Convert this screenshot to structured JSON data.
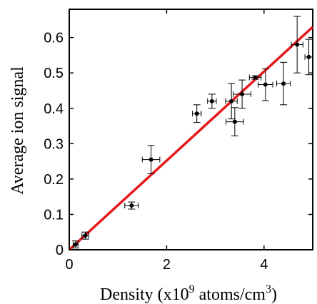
{
  "chart_data": {
    "type": "scatter",
    "xlabel": "Density (x10",
    "xlabel_superscript": "9",
    "xlabel_rest": " atoms/cm",
    "xlabel_rest_superscript": "3",
    "xlabel_close": ")",
    "ylabel": "Average ion signal",
    "xlim": [
      0,
      5
    ],
    "ylim": [
      0,
      0.68
    ],
    "grid": false,
    "x_ticks": [
      0,
      2,
      4
    ],
    "y_ticks": [
      0,
      0.1,
      0.2,
      0.3,
      0.4,
      0.5,
      0.6
    ],
    "x_tick_labels": [
      "0",
      "2",
      "4"
    ],
    "y_tick_labels": [
      "0",
      "0.1",
      "0.2",
      "0.3",
      "0.4",
      "0.5",
      "0.6"
    ],
    "series": [
      {
        "kind": "points",
        "color": "#000000",
        "points": [
          {
            "x": 0.13,
            "y": 0.015,
            "xerr": 0.05,
            "yerr": 0.01
          },
          {
            "x": 0.33,
            "y": 0.04,
            "xerr": 0.07,
            "yerr": 0.01
          },
          {
            "x": 1.28,
            "y": 0.125,
            "xerr": 0.14,
            "yerr": 0.01
          },
          {
            "x": 1.68,
            "y": 0.255,
            "xerr": 0.18,
            "yerr": 0.04
          },
          {
            "x": 2.62,
            "y": 0.385,
            "xerr": 0.09,
            "yerr": 0.025
          },
          {
            "x": 2.93,
            "y": 0.42,
            "xerr": 0.09,
            "yerr": 0.02
          },
          {
            "x": 3.33,
            "y": 0.42,
            "xerr": 0.12,
            "yerr": 0.05
          },
          {
            "x": 3.4,
            "y": 0.362,
            "xerr": 0.18,
            "yerr": 0.04
          },
          {
            "x": 3.55,
            "y": 0.44,
            "xerr": 0.18,
            "yerr": 0.04
          },
          {
            "x": 3.82,
            "y": 0.487,
            "xerr": 0.12,
            "yerr": 0.005
          },
          {
            "x": 4.03,
            "y": 0.467,
            "xerr": 0.15,
            "yerr": 0.045
          },
          {
            "x": 4.4,
            "y": 0.47,
            "xerr": 0.14,
            "yerr": 0.06
          },
          {
            "x": 4.68,
            "y": 0.58,
            "xerr": 0.12,
            "yerr": 0.08
          },
          {
            "x": 4.92,
            "y": 0.545,
            "xerr": 0.08,
            "yerr": 0.05
          }
        ]
      },
      {
        "kind": "fit-line",
        "color": "#e41a1c",
        "x": [
          0,
          5
        ],
        "y": [
          0,
          0.63
        ]
      }
    ]
  }
}
